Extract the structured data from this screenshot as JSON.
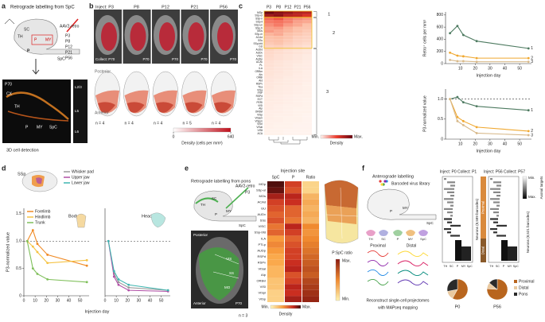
{
  "panel_a": {
    "label": "a",
    "title": "Retrograde labelling from SpC",
    "virus": "AAV2-retro",
    "ages": [
      "P3",
      "P8",
      "P12",
      "P21",
      "P56"
    ],
    "sketch_labels": [
      "SC",
      "TH",
      "P",
      "MY",
      "P",
      "SpC"
    ],
    "detection": "3D cell detection",
    "image_labels": [
      "P70",
      "CX",
      "TH",
      "P",
      "MY",
      "SpC"
    ],
    "layers": [
      "L2/3",
      "L5",
      "L6"
    ]
  },
  "panel_b": {
    "label": "b",
    "inject": [
      "Inject: P3",
      "P8",
      "P12",
      "P21",
      "P56"
    ],
    "collect": [
      "Collect: P70",
      "P70",
      "P70",
      "P70",
      "P70"
    ],
    "posterior": "Posterior",
    "anterior": "Anterior",
    "n": [
      "n = 4",
      "n = 4",
      "n = 4",
      "n = 5",
      "n = 4"
    ],
    "colorbar": {
      "label": "Density (cells per mm³)",
      "ticks": [
        0,
        640
      ]
    }
  },
  "panel_c": {
    "label": "c",
    "heatmap": {
      "columns": [
        "P3",
        "P8",
        "P12",
        "P21",
        "P56"
      ],
      "rows": [
        "MOp",
        "SSp-ul",
        "SSp-n",
        "SSp-ll",
        "SSp-un",
        "SSp-tr",
        "MOs",
        "SSp-m",
        "ACAd",
        "SSs",
        "SSp-bfd",
        "GU",
        "AUDd",
        "AUDv",
        "VISC",
        "AUDp",
        "ACAv",
        "PL",
        "ILA",
        "ORBm",
        "AIv",
        "ORBl",
        "AId",
        "RSPv",
        "TEa",
        "VISa",
        "FRP",
        "RSPd",
        "ECT",
        "PERI",
        "VISl",
        "AIp",
        "ORBvl",
        "VISp",
        "VISam",
        "VISpm",
        "VISrl",
        "VISal",
        "VISli",
        "ACA"
      ],
      "values": [
        [
          0.98,
          0.92,
          0.88,
          0.82,
          0.8
        ],
        [
          0.85,
          0.9,
          0.8,
          0.78,
          0.72
        ],
        [
          0.55,
          0.6,
          0.5,
          0.45,
          0.42
        ],
        [
          0.5,
          0.52,
          0.48,
          0.4,
          0.38
        ],
        [
          0.45,
          0.5,
          0.42,
          0.38,
          0.3
        ],
        [
          0.4,
          0.42,
          0.36,
          0.3,
          0.28
        ],
        [
          0.42,
          0.38,
          0.35,
          0.3,
          0.25
        ],
        [
          0.35,
          0.38,
          0.3,
          0.26,
          0.22
        ],
        [
          0.3,
          0.32,
          0.28,
          0.22,
          0.2
        ],
        [
          0.28,
          0.3,
          0.25,
          0.2,
          0.18
        ],
        [
          0.25,
          0.28,
          0.22,
          0.18,
          0.15
        ],
        [
          0.2,
          0.22,
          0.18,
          0.15,
          0.12
        ],
        [
          0.18,
          0.15,
          0.12,
          0.1,
          0.08
        ],
        [
          0.16,
          0.14,
          0.12,
          0.1,
          0.08
        ],
        [
          0.15,
          0.12,
          0.1,
          0.08,
          0.06
        ],
        [
          0.14,
          0.12,
          0.1,
          0.08,
          0.06
        ],
        [
          0.12,
          0.1,
          0.08,
          0.07,
          0.05
        ],
        [
          0.12,
          0.1,
          0.08,
          0.06,
          0.05
        ],
        [
          0.11,
          0.09,
          0.08,
          0.06,
          0.05
        ],
        [
          0.1,
          0.09,
          0.07,
          0.06,
          0.04
        ],
        [
          0.1,
          0.08,
          0.07,
          0.05,
          0.04
        ],
        [
          0.09,
          0.08,
          0.06,
          0.05,
          0.04
        ],
        [
          0.09,
          0.07,
          0.06,
          0.05,
          0.04
        ],
        [
          0.08,
          0.07,
          0.06,
          0.05,
          0.03
        ],
        [
          0.08,
          0.06,
          0.05,
          0.04,
          0.03
        ],
        [
          0.07,
          0.06,
          0.05,
          0.04,
          0.03
        ],
        [
          0.07,
          0.06,
          0.05,
          0.04,
          0.03
        ],
        [
          0.06,
          0.05,
          0.04,
          0.03,
          0.03
        ],
        [
          0.06,
          0.05,
          0.04,
          0.03,
          0.02
        ],
        [
          0.05,
          0.05,
          0.04,
          0.03,
          0.02
        ],
        [
          0.05,
          0.04,
          0.03,
          0.03,
          0.02
        ],
        [
          0.05,
          0.04,
          0.03,
          0.02,
          0.02
        ],
        [
          0.04,
          0.04,
          0.03,
          0.02,
          0.02
        ],
        [
          0.04,
          0.03,
          0.03,
          0.02,
          0.01
        ],
        [
          0.04,
          0.03,
          0.02,
          0.02,
          0.01
        ],
        [
          0.03,
          0.03,
          0.02,
          0.02,
          0.01
        ],
        [
          0.03,
          0.02,
          0.02,
          0.01,
          0.01
        ],
        [
          0.03,
          0.02,
          0.02,
          0.01,
          0.01
        ],
        [
          0.02,
          0.02,
          0.01,
          0.01,
          0.01
        ],
        [
          0.02,
          0.02,
          0.01,
          0.01,
          0.01
        ]
      ],
      "groups": [
        "1",
        "2",
        "3"
      ],
      "colorbar": [
        "Min.",
        "Max."
      ],
      "colorbar_label": "Density"
    },
    "plot_counts": {
      "ylabel": "Retro⁺ cells per mm³",
      "xlabel": "Injection day",
      "x": [
        3,
        8,
        12,
        21,
        56
      ],
      "xlim": [
        0,
        58
      ],
      "ylim": [
        0,
        850
      ],
      "xticks": [
        10,
        20,
        30,
        40,
        50
      ],
      "yticks": [
        0,
        200,
        400,
        600,
        800
      ],
      "series": [
        {
          "name": "1",
          "color": "#4d7a60",
          "values": [
            500,
            620,
            470,
            370,
            250
          ]
        },
        {
          "name": "2",
          "color": "#f0a830",
          "values": [
            180,
            130,
            120,
            90,
            90
          ]
        },
        {
          "name": "3",
          "color": "#d8b98a",
          "values": [
            60,
            40,
            40,
            30,
            30
          ]
        }
      ]
    },
    "plot_norm": {
      "ylabel": "P3-normalized value",
      "xlabel": "Injection day",
      "x": [
        3,
        8,
        12,
        21,
        56
      ],
      "xlim": [
        0,
        58
      ],
      "ylim": [
        0,
        1.25
      ],
      "xticks": [
        10,
        20,
        30,
        40,
        50
      ],
      "yticks": [
        0,
        0.5,
        {
          "value": 1,
          "label": "1.0"
        }
      ],
      "hline": 1,
      "series": [
        {
          "name": "1",
          "color": "#4d7a60",
          "values": [
            1,
            1.05,
            0.92,
            0.82,
            0.72
          ]
        },
        {
          "name": "2",
          "color": "#f0a830",
          "values": [
            1,
            0.55,
            0.45,
            0.3,
            0.2
          ]
        },
        {
          "name": "3",
          "color": "#d8b98a",
          "values": [
            1,
            0.45,
            0.35,
            0.15,
            0.1
          ]
        }
      ]
    }
  },
  "panel_d": {
    "label": "d",
    "region": "SSp",
    "ylabel": "P3-normalized value",
    "xlabel": "Injection day",
    "body": {
      "title": "Body",
      "x": [
        3,
        8,
        12,
        21,
        56
      ],
      "xlim": [
        0,
        58
      ],
      "ylim": [
        0,
        1.6
      ],
      "xticks": [
        0,
        10,
        20,
        30,
        40,
        50
      ],
      "yticks": [
        0,
        0.5,
        {
          "value": 1,
          "label": "1.0"
        },
        1.5
      ],
      "hline": 1,
      "series": [
        {
          "name": "Forelimb",
          "color": "#f08a24",
          "values": [
            1,
            1.2,
            0.95,
            0.75,
            0.55
          ]
        },
        {
          "name": "Hindlimb",
          "color": "#f5c242",
          "values": [
            1,
            0.9,
            0.8,
            0.6,
            0.65
          ]
        },
        {
          "name": "Trunk",
          "color": "#7fbf5a",
          "values": [
            1,
            0.5,
            0.4,
            0.3,
            0.25
          ]
        }
      ]
    },
    "head": {
      "title": "Head",
      "x": [
        3,
        8,
        12,
        21,
        56
      ],
      "xlim": [
        0,
        58
      ],
      "ylim": [
        0,
        1.6
      ],
      "xticks": [
        0,
        10,
        20,
        30,
        40,
        50
      ],
      "hline": 1,
      "series": [
        {
          "name": "Whisker pad",
          "color": "#9a9a9a",
          "values": [
            1,
            0.4,
            0.25,
            0.15,
            0.1
          ]
        },
        {
          "name": "Upper jaw",
          "color": "#b04fa6",
          "values": [
            1,
            0.35,
            0.2,
            0.1,
            0.08
          ]
        },
        {
          "name": "Lower jaw",
          "color": "#3fb6b0",
          "values": [
            1,
            0.45,
            0.3,
            0.2,
            0.1
          ]
        }
      ]
    }
  },
  "panel_e": {
    "label": "e",
    "title": "Retrograde labelling from pons",
    "virus": "AAV2-retro",
    "age": "P3",
    "sketch_labels": [
      "TH",
      "SC",
      "P",
      "MY",
      "SpC"
    ],
    "image_labels": [
      "Posterior",
      "Anterior",
      "P70",
      "VIS",
      "SS",
      "MO"
    ],
    "n": "n = 3",
    "heatmap": {
      "title": "Injection site",
      "columns": [
        "SpC",
        "P",
        "Ratio"
      ],
      "rows": [
        "MOp",
        "SSp-ul",
        "MOs",
        "ACAd",
        "GU",
        "AUDv",
        "SSs",
        "VISC",
        "SSp-bfd",
        "ILA",
        "PTLp",
        "AUDp",
        "RSPd",
        "RSPv",
        "VISal",
        "AIp",
        "ORBvl",
        "VISl",
        "VISpl",
        "VISp"
      ],
      "values": [
        [
          0.95,
          0.6,
          0.15
        ],
        [
          0.9,
          0.55,
          0.15
        ],
        [
          0.75,
          0.7,
          0.3
        ],
        [
          0.6,
          0.65,
          0.35
        ],
        [
          0.55,
          0.5,
          0.3
        ],
        [
          0.5,
          0.5,
          0.35
        ],
        [
          0.55,
          0.45,
          0.3
        ],
        [
          0.45,
          0.7,
          0.5
        ],
        [
          0.5,
          0.6,
          0.45
        ],
        [
          0.35,
          0.5,
          0.5
        ],
        [
          0.4,
          0.55,
          0.55
        ],
        [
          0.35,
          0.6,
          0.6
        ],
        [
          0.3,
          0.6,
          0.65
        ],
        [
          0.3,
          0.65,
          0.7
        ],
        [
          0.25,
          0.7,
          0.75
        ],
        [
          0.25,
          0.55,
          0.7
        ],
        [
          0.2,
          0.6,
          0.8
        ],
        [
          0.2,
          0.7,
          0.85
        ],
        [
          0.15,
          0.65,
          0.9
        ],
        [
          0.15,
          0.75,
          0.95
        ]
      ],
      "colorbar": [
        "Min.",
        "Max."
      ],
      "colorbar_label": "Density"
    },
    "ratio_label": "P:SpC ratio",
    "ratio_colorbar": [
      "Max.",
      "Min."
    ]
  },
  "panel_f": {
    "label": "f",
    "title": "Anterograde labelling",
    "library": "Barcoded virus library",
    "sketch_labels": [
      "P",
      "MY",
      "SpC"
    ],
    "groups": [
      "Proximal",
      "Distal"
    ],
    "icon_labels": [
      "TH",
      "SC",
      "P",
      "MY",
      "SpC"
    ],
    "caption": [
      "Reconstruct single-cell projectomes",
      "with MAPseq mapping"
    ],
    "heatmaps": [
      {
        "title": "Inject: P0  Collect: P1",
        "ylabel": "Neurons (8,589 barcodes)",
        "targets": [
          "TH",
          "SC",
          "P",
          "MY",
          "SpC"
        ]
      },
      {
        "title": "Inject: P56  Collect: P57",
        "ylabel": "Neurons (8,521 barcodes)",
        "targets": [
          "TH",
          "SC",
          "P",
          "MY",
          "SpC"
        ]
      }
    ],
    "side_labels": [
      "Proximal",
      "Distal"
    ],
    "colorbar": [
      "Min.",
      "Max."
    ],
    "colorbar_label": "Axonal targets",
    "pie_legend": [
      {
        "name": "Proximal",
        "color": "#b8651e"
      },
      {
        "name": "Distal",
        "color": "#e9c9a0"
      },
      {
        "name": "Pons",
        "color": "#2a2a2a"
      }
    ],
    "pies": [
      {
        "label": "P0",
        "values": [
          58,
          14,
          28
        ]
      },
      {
        "label": "P56",
        "values": [
          76,
          10,
          14
        ]
      }
    ]
  }
}
